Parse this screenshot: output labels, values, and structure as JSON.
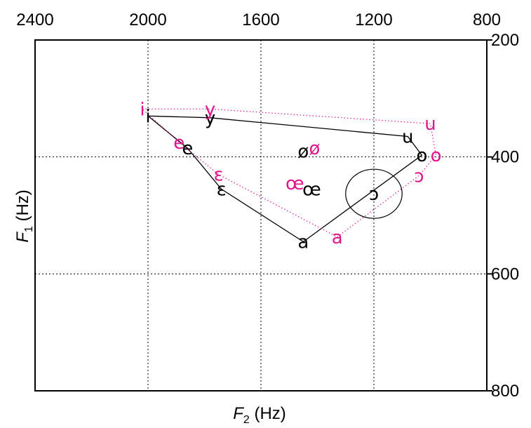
{
  "chart_data": {
    "type": "scatter",
    "title": "",
    "xlabel": "F2 (Hz)",
    "xlabel_main": "F",
    "xlabel_sub": "2",
    "xlabel_unit": " (Hz)",
    "ylabel": "F1 (Hz)",
    "ylabel_main": "F",
    "ylabel_sub": "1",
    "ylabel_unit": " (Hz)",
    "x_axis": {
      "position": "top",
      "reversed": true,
      "range": [
        2400,
        800
      ],
      "ticks": [
        2400,
        2000,
        1600,
        1200,
        800
      ]
    },
    "y_axis": {
      "position": "right",
      "reversed": true,
      "range": [
        200,
        800
      ],
      "ticks": [
        200,
        400,
        600,
        800
      ]
    },
    "grid": true,
    "colors": {
      "series1": "#000000",
      "series2": "#e0188c"
    },
    "series": [
      {
        "line_style": "solid",
        "polygon": [
          "i",
          "y",
          "u",
          "o",
          "a",
          "ɛ",
          "e",
          "i"
        ],
        "points": [
          {
            "label": "i",
            "x": 2000,
            "y": 330
          },
          {
            "label": "y",
            "x": 1780,
            "y": 333
          },
          {
            "label": "u",
            "x": 1080,
            "y": 365
          },
          {
            "label": "o",
            "x": 1030,
            "y": 397
          },
          {
            "label": "ø",
            "x": 1450,
            "y": 390
          },
          {
            "label": "e",
            "x": 1860,
            "y": 385
          },
          {
            "label": "ɛ",
            "x": 1740,
            "y": 455
          },
          {
            "label": "œ",
            "x": 1420,
            "y": 455
          },
          {
            "label": "ɔ",
            "x": 1200,
            "y": 463
          },
          {
            "label": "a",
            "x": 1450,
            "y": 545
          }
        ]
      },
      {
        "line_style": "dotted",
        "polygon": [
          "i",
          "y",
          "u",
          "o",
          "ɔ",
          "a",
          "ɛ",
          "e",
          "i"
        ],
        "points": [
          {
            "label": "i",
            "x": 2020,
            "y": 318
          },
          {
            "label": "y",
            "x": 1780,
            "y": 318
          },
          {
            "label": "u",
            "x": 1000,
            "y": 343
          },
          {
            "label": "o",
            "x": 980,
            "y": 397
          },
          {
            "label": "ø",
            "x": 1410,
            "y": 385
          },
          {
            "label": "e",
            "x": 1890,
            "y": 375
          },
          {
            "label": "ɛ",
            "x": 1750,
            "y": 430
          },
          {
            "label": "œ",
            "x": 1480,
            "y": 445
          },
          {
            "label": "ɔ",
            "x": 1040,
            "y": 432
          },
          {
            "label": "a",
            "x": 1330,
            "y": 537
          }
        ]
      }
    ],
    "ellipse": {
      "center_x": 1200,
      "center_y": 463,
      "half_width": 100,
      "half_height": 42
    }
  }
}
